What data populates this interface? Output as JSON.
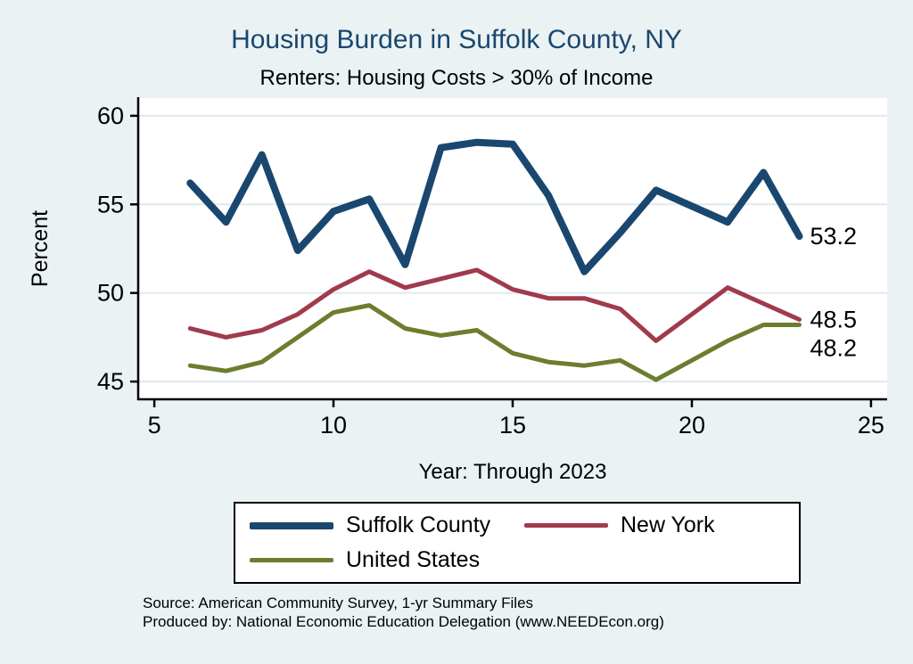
{
  "source": {
    "line1": "Source: American Community Survey, 1-yr Summary Files",
    "line2": "Produced by: National Economic Education Delegation (www.NEEDEcon.org)"
  },
  "colors": {
    "background": "#eaf2f3",
    "plot_background": "#ffffff",
    "gridline": "#dfeaed",
    "title": "#1a476f",
    "axis": "#000000"
  },
  "chart_data": {
    "type": "line",
    "title": "Housing Burden in Suffolk County, NY",
    "subtitle": "Renters: Housing Costs > 30% of Income",
    "xlabel": "Year: Through 2023",
    "ylabel": "Percent",
    "x": [
      6,
      7,
      8,
      9,
      10,
      11,
      12,
      13,
      14,
      15,
      16,
      17,
      18,
      19,
      20,
      21,
      22,
      23
    ],
    "series": [
      {
        "name": "Suffolk County",
        "color": "#1a476f",
        "width": 8,
        "end_label": "53.2",
        "values": [
          56.2,
          54.0,
          57.8,
          52.4,
          54.6,
          55.3,
          51.6,
          58.2,
          58.5,
          58.4,
          55.5,
          51.2,
          53.4,
          55.8,
          54.9,
          54.0,
          56.8,
          53.2
        ]
      },
      {
        "name": "New York",
        "color": "#a03b4b",
        "width": 5,
        "end_label": "48.5",
        "values": [
          48.0,
          47.5,
          47.9,
          48.8,
          50.2,
          51.2,
          50.3,
          50.8,
          51.3,
          50.2,
          49.7,
          49.7,
          49.1,
          47.3,
          48.8,
          50.3,
          49.4,
          48.5
        ]
      },
      {
        "name": "United States",
        "color": "#6d7d2e",
        "width": 5,
        "end_label": "48.2",
        "values": [
          45.9,
          45.6,
          46.1,
          47.5,
          48.9,
          49.3,
          48.0,
          47.6,
          47.9,
          46.6,
          46.1,
          45.9,
          46.2,
          45.1,
          46.2,
          47.3,
          48.2,
          48.2
        ]
      }
    ],
    "xticks": [
      5,
      10,
      15,
      20,
      25
    ],
    "yticks": [
      45,
      50,
      55,
      60
    ],
    "xlim": [
      4.55,
      25.45
    ],
    "ylim": [
      44.0,
      61.0
    ],
    "grid": true,
    "legend_position": "bottom"
  }
}
